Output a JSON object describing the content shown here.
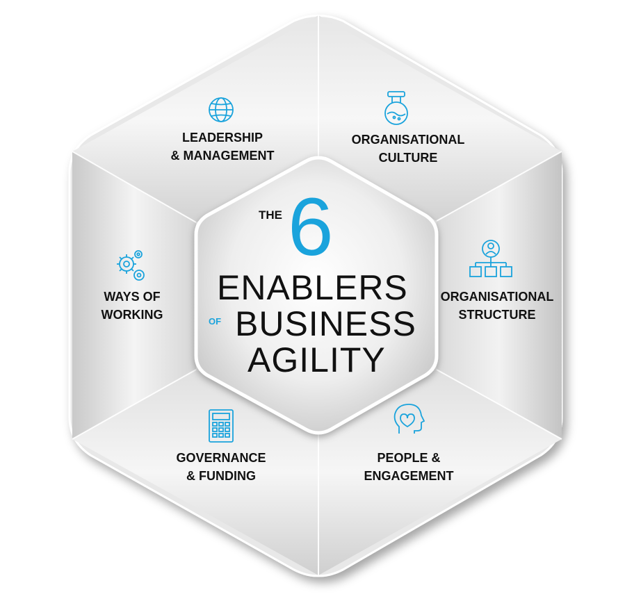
{
  "center": {
    "the": "THE",
    "number": "6",
    "line1": "ENABLERS",
    "of": "OF",
    "line2": "BUSINESS",
    "line3": "AGILITY"
  },
  "segments": [
    {
      "id": "leadership",
      "lines": [
        "LEADERSHIP",
        "& MANAGEMENT"
      ],
      "icon": "globe-icon"
    },
    {
      "id": "culture",
      "lines": [
        "ORGANISATIONAL",
        "CULTURE"
      ],
      "icon": "lab-flask-icon"
    },
    {
      "id": "structure",
      "lines": [
        "ORGANISATIONAL",
        "STRUCTURE"
      ],
      "icon": "org-chart-icon"
    },
    {
      "id": "ways",
      "lines": [
        "WAYS OF",
        "WORKING"
      ],
      "icon": "gears-icon"
    },
    {
      "id": "governance",
      "lines": [
        "GOVERNANCE",
        "& FUNDING"
      ],
      "icon": "calculator-icon"
    },
    {
      "id": "people",
      "lines": [
        "PEOPLE &",
        "ENGAGEMENT"
      ],
      "icon": "head-heart-icon"
    }
  ],
  "colors": {
    "accent": "#1aa3dc",
    "text": "#111111",
    "panel_light": "#f4f4f4",
    "panel_mid": "#d9d9d9",
    "panel_dark": "#bdbdbd"
  }
}
